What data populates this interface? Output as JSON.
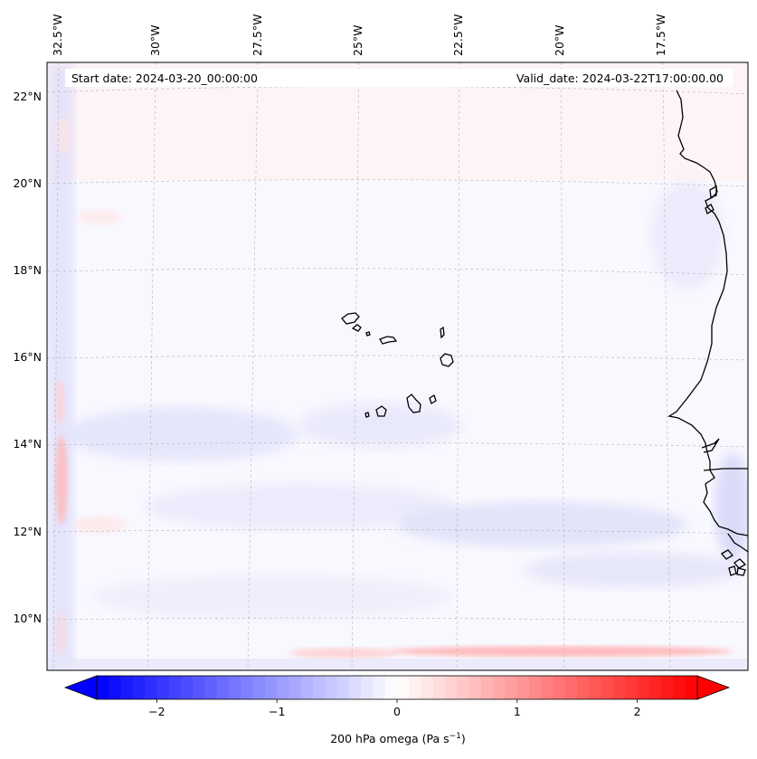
{
  "map": {
    "header": {
      "start_date": "Start date: 2024-03-20_00:00:00",
      "valid_date": "Valid_date: 2024-03-22T17:00:00.00"
    },
    "lon_labels": [
      "32.5°W",
      "30°W",
      "27.5°W",
      "25°W",
      "22.5°W",
      "20°W",
      "17.5°W"
    ],
    "lat_labels": [
      "22°N",
      "20°N",
      "18°N",
      "16°N",
      "14°N",
      "12°N",
      "10°N"
    ],
    "extent": {
      "lon_min": -33.0,
      "lon_max": -15.5,
      "lat_min": 8.9,
      "lat_max": 22.7
    },
    "field": "200 hPa omega",
    "colormap": "bwr",
    "colors": {
      "neg": "#0000ff",
      "zero": "#ffffff",
      "pos": "#ff0000",
      "coast": "#000000",
      "grid": "#b0b0b0"
    }
  },
  "colorbar": {
    "label": "200 hPa omega (Pa s",
    "label_sup": "−1",
    "label_end": ")",
    "ticks": [
      "−2",
      "−1",
      "0",
      "1",
      "2"
    ],
    "tick_values": [
      -2,
      -1,
      0,
      1,
      2
    ],
    "vmin": -2.5,
    "vmax": 2.5,
    "extend": "both"
  }
}
